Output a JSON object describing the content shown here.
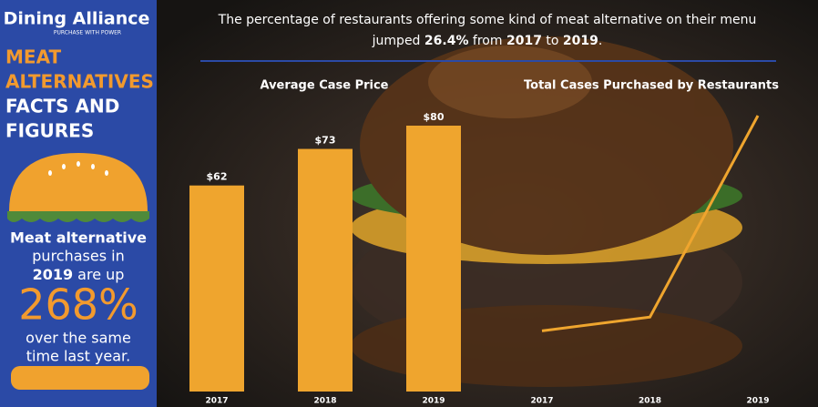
{
  "brand": {
    "name": "Dining Alliance",
    "tagline": "PURCHASE WITH POWER"
  },
  "sidebar": {
    "title_orange": [
      "MEAT",
      "ALTERNATIVES"
    ],
    "title_white": [
      "FACTS AND",
      "FIGURES"
    ],
    "stat_lines_before": [
      "Meat alternative",
      "purchases in"
    ],
    "stat_year": "2019",
    "stat_year_rest": " are up",
    "stat_value": "268%",
    "stat_lines_after": [
      "over the same",
      "time last year."
    ]
  },
  "header": {
    "line1": "The percentage of restaurants offering some kind of meat alternative on their menu",
    "line2": [
      {
        "text": "jumped ",
        "bold": false
      },
      {
        "text": "26.4%",
        "bold": true
      },
      {
        "text": " from ",
        "bold": false
      },
      {
        "text": "2017",
        "bold": true
      },
      {
        "text": " to ",
        "bold": false
      },
      {
        "text": "2019",
        "bold": true
      },
      {
        "text": ".",
        "bold": false
      }
    ]
  },
  "chart_data": [
    {
      "type": "bar",
      "title": "Average Case Price",
      "categories": [
        "2017",
        "2018",
        "2019"
      ],
      "values": [
        62,
        73,
        80
      ],
      "value_labels": [
        "$62",
        "$73",
        "$80"
      ],
      "color": "#efa52e"
    },
    {
      "type": "line",
      "title": "Total Cases Purchased by Restaurants",
      "categories": [
        "2017",
        "2018",
        "2019"
      ],
      "values": [
        22,
        27,
        100
      ],
      "color": "#efa52e"
    }
  ]
}
